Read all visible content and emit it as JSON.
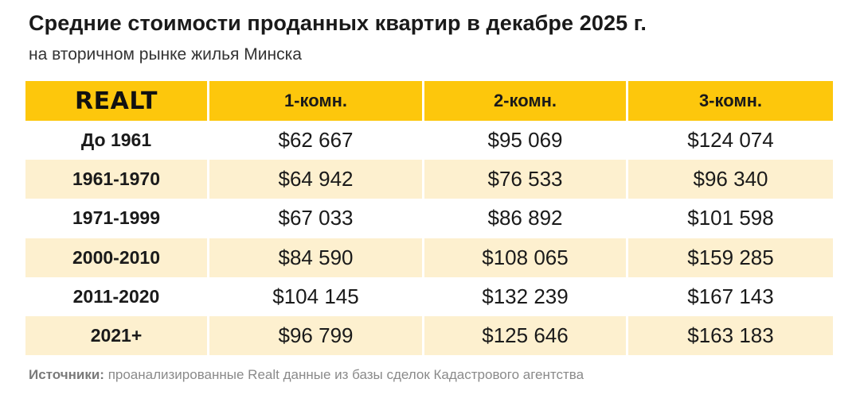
{
  "title": "Средние стоимости проданных квартир в декабре 2025 г.",
  "subtitle": "на вторичном рынке жилья Минска",
  "logo_text": "REALT",
  "source_label": "Источники:",
  "source_text": "проанализированные Realt данные из базы сделок Кадастрового агентства",
  "colors": {
    "header_bg": "#fdc70c",
    "stripe_bg": "#fdf0cf"
  },
  "chart_data": {
    "type": "table",
    "columns": [
      "1-комн.",
      "2-комн.",
      "3-комн."
    ],
    "rows": [
      {
        "label": "До 1961",
        "values": [
          "$62 667",
          "$95 069",
          "$124 074"
        ]
      },
      {
        "label": "1961-1970",
        "values": [
          "$64 942",
          "$76 533",
          "$96 340"
        ]
      },
      {
        "label": "1971-1999",
        "values": [
          "$67 033",
          "$86 892",
          "$101 598"
        ]
      },
      {
        "label": "2000-2010",
        "values": [
          "$84 590",
          "$108 065",
          "$159 285"
        ]
      },
      {
        "label": "2011-2020",
        "values": [
          "$104 145",
          "$132 239",
          "$167 143"
        ]
      },
      {
        "label": "2021+",
        "values": [
          "$96 799",
          "$125 646",
          "$163 183"
        ]
      }
    ]
  }
}
